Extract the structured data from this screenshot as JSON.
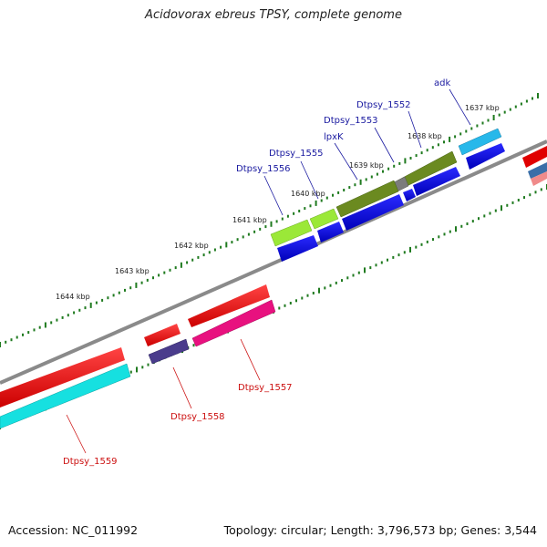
{
  "title": "Acidovorax ebreus TPSY, complete genome",
  "footer": {
    "accession": "Accession: NC_011992",
    "summary": "Topology: circular; Length: 3,796,573 bp; Genes: 3,544"
  },
  "colors": {
    "backbone": "#8a8a8a",
    "tick": "#1f7a1f",
    "forward_label": "#1a1aa0",
    "reverse_label": "#cc1111"
  },
  "scale_labels": [
    "1637 kbp",
    "1638 kbp",
    "1639 kbp",
    "1640 kbp",
    "1641 kbp",
    "1642 kbp",
    "1643 kbp",
    "1644 kbp"
  ],
  "genes_forward": [
    {
      "label": "adk",
      "color": "#27b8ea"
    },
    {
      "label": "Dtpsy_1552",
      "color": "#6b8a20"
    },
    {
      "label": "Dtpsy_1553",
      "color": "#7c7c7c"
    },
    {
      "label": "lpxK",
      "color": "#6b8a20"
    },
    {
      "label": "Dtpsy_1555",
      "color": "#9be838"
    },
    {
      "label": "Dtpsy_1556",
      "color": "#9be838"
    }
  ],
  "genes_reverse": [
    {
      "label": "Dtpsy_1557",
      "color": "#e8117f"
    },
    {
      "label": "Dtpsy_1558",
      "color": "#4a3c8c"
    },
    {
      "label": "Dtpsy_1559",
      "color": "#16e0e0"
    }
  ]
}
